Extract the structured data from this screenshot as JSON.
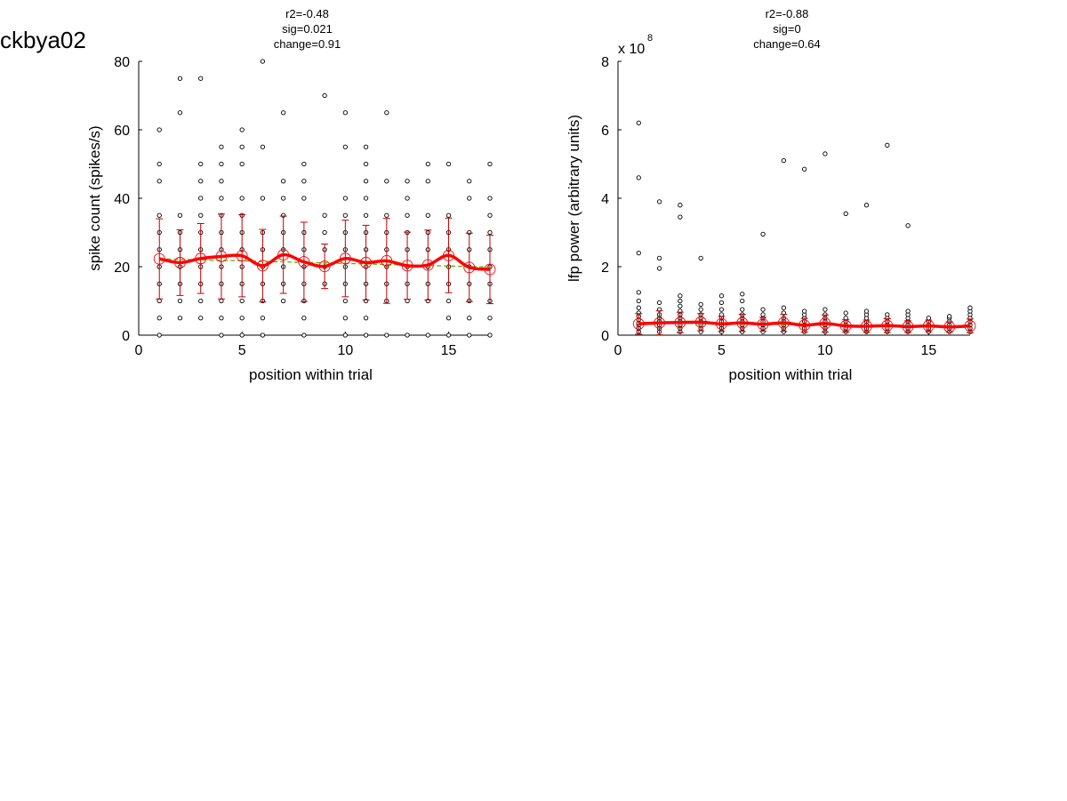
{
  "page_title": "ckbya02",
  "colors": {
    "mean": "#ff0000",
    "errorbar": "#c00000",
    "fit": "#66aa00",
    "points": "#000000"
  },
  "chart_data": [
    {
      "type": "scatter",
      "stats": [
        "r2=-0.48",
        "sig=0.021",
        "change=0.91"
      ],
      "xlabel": "position within trial",
      "ylabel": "spike count (spikes/s)",
      "exponent_label": "",
      "xlim": [
        0,
        17
      ],
      "ylim": [
        0,
        80
      ],
      "xticks": [
        0,
        5,
        10,
        15
      ],
      "yticks": [
        0,
        20,
        40,
        60,
        80
      ],
      "ytick_labels": [
        "0",
        "20",
        "40",
        "60",
        "80"
      ],
      "points": [
        [
          1,
          0
        ],
        [
          1,
          5
        ],
        [
          1,
          10
        ],
        [
          1,
          15
        ],
        [
          1,
          20
        ],
        [
          1,
          25
        ],
        [
          1,
          30
        ],
        [
          1,
          35
        ],
        [
          1,
          45
        ],
        [
          1,
          50
        ],
        [
          1,
          60
        ],
        [
          2,
          5
        ],
        [
          2,
          10
        ],
        [
          2,
          15
        ],
        [
          2,
          20
        ],
        [
          2,
          25
        ],
        [
          2,
          30
        ],
        [
          2,
          35
        ],
        [
          2,
          65
        ],
        [
          2,
          75
        ],
        [
          3,
          5
        ],
        [
          3,
          10
        ],
        [
          3,
          15
        ],
        [
          3,
          20
        ],
        [
          3,
          25
        ],
        [
          3,
          30
        ],
        [
          3,
          35
        ],
        [
          3,
          40
        ],
        [
          3,
          45
        ],
        [
          3,
          50
        ],
        [
          3,
          75
        ],
        [
          4,
          0
        ],
        [
          4,
          5
        ],
        [
          4,
          10
        ],
        [
          4,
          15
        ],
        [
          4,
          20
        ],
        [
          4,
          25
        ],
        [
          4,
          30
        ],
        [
          4,
          35
        ],
        [
          4,
          40
        ],
        [
          4,
          45
        ],
        [
          4,
          50
        ],
        [
          4,
          55
        ],
        [
          5,
          0
        ],
        [
          5,
          5
        ],
        [
          5,
          10
        ],
        [
          5,
          15
        ],
        [
          5,
          20
        ],
        [
          5,
          25
        ],
        [
          5,
          30
        ],
        [
          5,
          35
        ],
        [
          5,
          40
        ],
        [
          5,
          50
        ],
        [
          5,
          55
        ],
        [
          5,
          60
        ],
        [
          6,
          0
        ],
        [
          6,
          5
        ],
        [
          6,
          10
        ],
        [
          6,
          15
        ],
        [
          6,
          20
        ],
        [
          6,
          25
        ],
        [
          6,
          30
        ],
        [
          6,
          40
        ],
        [
          6,
          55
        ],
        [
          6,
          80
        ],
        [
          7,
          10
        ],
        [
          7,
          15
        ],
        [
          7,
          20
        ],
        [
          7,
          25
        ],
        [
          7,
          30
        ],
        [
          7,
          35
        ],
        [
          7,
          40
        ],
        [
          7,
          45
        ],
        [
          7,
          65
        ],
        [
          8,
          0
        ],
        [
          8,
          5
        ],
        [
          8,
          10
        ],
        [
          8,
          15
        ],
        [
          8,
          20
        ],
        [
          8,
          25
        ],
        [
          8,
          30
        ],
        [
          8,
          40
        ],
        [
          8,
          45
        ],
        [
          8,
          50
        ],
        [
          9,
          15
        ],
        [
          9,
          20
        ],
        [
          9,
          25
        ],
        [
          9,
          30
        ],
        [
          9,
          35
        ],
        [
          9,
          70
        ],
        [
          10,
          0
        ],
        [
          10,
          5
        ],
        [
          10,
          10
        ],
        [
          10,
          15
        ],
        [
          10,
          20
        ],
        [
          10,
          25
        ],
        [
          10,
          30
        ],
        [
          10,
          35
        ],
        [
          10,
          40
        ],
        [
          10,
          55
        ],
        [
          10,
          65
        ],
        [
          11,
          0
        ],
        [
          11,
          5
        ],
        [
          11,
          10
        ],
        [
          11,
          15
        ],
        [
          11,
          20
        ],
        [
          11,
          25
        ],
        [
          11,
          30
        ],
        [
          11,
          35
        ],
        [
          11,
          40
        ],
        [
          11,
          45
        ],
        [
          11,
          50
        ],
        [
          11,
          55
        ],
        [
          12,
          0
        ],
        [
          12,
          10
        ],
        [
          12,
          15
        ],
        [
          12,
          20
        ],
        [
          12,
          25
        ],
        [
          12,
          30
        ],
        [
          12,
          35
        ],
        [
          12,
          45
        ],
        [
          12,
          65
        ],
        [
          13,
          0
        ],
        [
          13,
          10
        ],
        [
          13,
          15
        ],
        [
          13,
          20
        ],
        [
          13,
          25
        ],
        [
          13,
          30
        ],
        [
          13,
          35
        ],
        [
          13,
          40
        ],
        [
          13,
          45
        ],
        [
          14,
          0
        ],
        [
          14,
          10
        ],
        [
          14,
          15
        ],
        [
          14,
          20
        ],
        [
          14,
          25
        ],
        [
          14,
          30
        ],
        [
          14,
          35
        ],
        [
          14,
          45
        ],
        [
          14,
          50
        ],
        [
          15,
          0
        ],
        [
          15,
          5
        ],
        [
          15,
          10
        ],
        [
          15,
          15
        ],
        [
          15,
          20
        ],
        [
          15,
          25
        ],
        [
          15,
          30
        ],
        [
          15,
          35
        ],
        [
          15,
          50
        ],
        [
          16,
          0
        ],
        [
          16,
          5
        ],
        [
          16,
          10
        ],
        [
          16,
          15
        ],
        [
          16,
          20
        ],
        [
          16,
          25
        ],
        [
          16,
          30
        ],
        [
          16,
          40
        ],
        [
          16,
          45
        ],
        [
          17,
          0
        ],
        [
          17,
          5
        ],
        [
          17,
          10
        ],
        [
          17,
          15
        ],
        [
          17,
          20
        ],
        [
          17,
          25
        ],
        [
          17,
          30
        ],
        [
          17,
          35
        ],
        [
          17,
          40
        ],
        [
          17,
          50
        ]
      ],
      "means": [
        {
          "x": 1,
          "y": 22.3,
          "err": 11.7
        },
        {
          "x": 2,
          "y": 21.2,
          "err": 9.6
        },
        {
          "x": 3,
          "y": 22.4,
          "err": 10.2
        },
        {
          "x": 4,
          "y": 23.0,
          "err": 12.4
        },
        {
          "x": 5,
          "y": 23.2,
          "err": 12.0
        },
        {
          "x": 6,
          "y": 20.3,
          "err": 10.6
        },
        {
          "x": 7,
          "y": 23.5,
          "err": 11.3
        },
        {
          "x": 8,
          "y": 21.4,
          "err": 11.6
        },
        {
          "x": 9,
          "y": 20.1,
          "err": 6.5
        },
        {
          "x": 10,
          "y": 22.4,
          "err": 11.2
        },
        {
          "x": 11,
          "y": 21.2,
          "err": 10.9
        },
        {
          "x": 12,
          "y": 21.7,
          "err": 12.4
        },
        {
          "x": 13,
          "y": 20.3,
          "err": 9.8
        },
        {
          "x": 14,
          "y": 20.5,
          "err": 10.2
        },
        {
          "x": 15,
          "y": 23.3,
          "err": 10.9
        },
        {
          "x": 16,
          "y": 19.8,
          "err": 10.0
        },
        {
          "x": 17,
          "y": 19.2,
          "err": 10.0
        }
      ],
      "fit": [
        [
          1,
          22.3
        ],
        [
          17,
          19.9
        ]
      ]
    },
    {
      "type": "scatter",
      "stats": [
        "r2=-0.88",
        "sig=0",
        "change=0.64"
      ],
      "xlabel": "position within trial",
      "ylabel": "lfp power (arbitrary units)",
      "exponent_label": "x 10",
      "exponent": "8",
      "xlim": [
        0,
        17
      ],
      "ylim": [
        0,
        8
      ],
      "xticks": [
        0,
        5,
        10,
        15
      ],
      "yticks": [
        0,
        2,
        4,
        6,
        8
      ],
      "ytick_labels": [
        "0",
        "2",
        "4",
        "6",
        "8"
      ],
      "points": [
        [
          1,
          0.1
        ],
        [
          1,
          0.2
        ],
        [
          1,
          0.3
        ],
        [
          1,
          0.35
        ],
        [
          1,
          0.45
        ],
        [
          1,
          0.55
        ],
        [
          1,
          0.65
        ],
        [
          1,
          0.8
        ],
        [
          1,
          1.0
        ],
        [
          1,
          1.25
        ],
        [
          1,
          2.4
        ],
        [
          1,
          4.6
        ],
        [
          1,
          6.2
        ],
        [
          2,
          0.1
        ],
        [
          2,
          0.2
        ],
        [
          2,
          0.3
        ],
        [
          2,
          0.4
        ],
        [
          2,
          0.5
        ],
        [
          2,
          0.6
        ],
        [
          2,
          0.75
        ],
        [
          2,
          0.95
        ],
        [
          2,
          1.95
        ],
        [
          2,
          2.25
        ],
        [
          2,
          3.9
        ],
        [
          3,
          0.1
        ],
        [
          3,
          0.2
        ],
        [
          3,
          0.3
        ],
        [
          3,
          0.4
        ],
        [
          3,
          0.5
        ],
        [
          3,
          0.6
        ],
        [
          3,
          0.7
        ],
        [
          3,
          0.85
        ],
        [
          3,
          1.0
        ],
        [
          3,
          1.15
        ],
        [
          3,
          3.45
        ],
        [
          3,
          3.8
        ],
        [
          4,
          0.1
        ],
        [
          4,
          0.2
        ],
        [
          4,
          0.3
        ],
        [
          4,
          0.4
        ],
        [
          4,
          0.5
        ],
        [
          4,
          0.6
        ],
        [
          4,
          0.75
        ],
        [
          4,
          0.9
        ],
        [
          4,
          2.25
        ],
        [
          5,
          0.1
        ],
        [
          5,
          0.2
        ],
        [
          5,
          0.3
        ],
        [
          5,
          0.4
        ],
        [
          5,
          0.5
        ],
        [
          5,
          0.6
        ],
        [
          5,
          0.75
        ],
        [
          5,
          0.95
        ],
        [
          5,
          1.15
        ],
        [
          6,
          0.1
        ],
        [
          6,
          0.2
        ],
        [
          6,
          0.3
        ],
        [
          6,
          0.4
        ],
        [
          6,
          0.5
        ],
        [
          6,
          0.6
        ],
        [
          6,
          0.75
        ],
        [
          6,
          1.0
        ],
        [
          6,
          1.2
        ],
        [
          7,
          0.1
        ],
        [
          7,
          0.2
        ],
        [
          7,
          0.3
        ],
        [
          7,
          0.4
        ],
        [
          7,
          0.5
        ],
        [
          7,
          0.6
        ],
        [
          7,
          0.75
        ],
        [
          7,
          2.95
        ],
        [
          8,
          0.1
        ],
        [
          8,
          0.2
        ],
        [
          8,
          0.3
        ],
        [
          8,
          0.4
        ],
        [
          8,
          0.5
        ],
        [
          8,
          0.65
        ],
        [
          8,
          0.8
        ],
        [
          8,
          5.1
        ],
        [
          9,
          0.1
        ],
        [
          9,
          0.2
        ],
        [
          9,
          0.3
        ],
        [
          9,
          0.4
        ],
        [
          9,
          0.5
        ],
        [
          9,
          0.6
        ],
        [
          9,
          0.7
        ],
        [
          9,
          4.85
        ],
        [
          10,
          0.1
        ],
        [
          10,
          0.2
        ],
        [
          10,
          0.3
        ],
        [
          10,
          0.4
        ],
        [
          10,
          0.5
        ],
        [
          10,
          0.6
        ],
        [
          10,
          0.75
        ],
        [
          10,
          5.3
        ],
        [
          11,
          0.1
        ],
        [
          11,
          0.2
        ],
        [
          11,
          0.3
        ],
        [
          11,
          0.4
        ],
        [
          11,
          0.5
        ],
        [
          11,
          0.65
        ],
        [
          11,
          3.55
        ],
        [
          12,
          0.1
        ],
        [
          12,
          0.2
        ],
        [
          12,
          0.3
        ],
        [
          12,
          0.4
        ],
        [
          12,
          0.5
        ],
        [
          12,
          0.6
        ],
        [
          12,
          0.7
        ],
        [
          12,
          3.8
        ],
        [
          13,
          0.1
        ],
        [
          13,
          0.2
        ],
        [
          13,
          0.3
        ],
        [
          13,
          0.4
        ],
        [
          13,
          0.5
        ],
        [
          13,
          0.6
        ],
        [
          13,
          5.55
        ],
        [
          14,
          0.1
        ],
        [
          14,
          0.2
        ],
        [
          14,
          0.3
        ],
        [
          14,
          0.4
        ],
        [
          14,
          0.5
        ],
        [
          14,
          0.6
        ],
        [
          14,
          0.7
        ],
        [
          14,
          3.2
        ],
        [
          15,
          0.1
        ],
        [
          15,
          0.2
        ],
        [
          15,
          0.3
        ],
        [
          15,
          0.4
        ],
        [
          15,
          0.5
        ],
        [
          16,
          0.1
        ],
        [
          16,
          0.2
        ],
        [
          16,
          0.3
        ],
        [
          16,
          0.4
        ],
        [
          16,
          0.5
        ],
        [
          16,
          0.55
        ],
        [
          17,
          0.1
        ],
        [
          17,
          0.2
        ],
        [
          17,
          0.3
        ],
        [
          17,
          0.4
        ],
        [
          17,
          0.5
        ],
        [
          17,
          0.6
        ],
        [
          17,
          0.7
        ],
        [
          17,
          0.8
        ]
      ],
      "means": [
        {
          "x": 1,
          "y": 0.33,
          "err": 0.3
        },
        {
          "x": 2,
          "y": 0.36,
          "err": 0.35
        },
        {
          "x": 3,
          "y": 0.37,
          "err": 0.3
        },
        {
          "x": 4,
          "y": 0.38,
          "err": 0.25
        },
        {
          "x": 5,
          "y": 0.33,
          "err": 0.22
        },
        {
          "x": 6,
          "y": 0.36,
          "err": 0.25
        },
        {
          "x": 7,
          "y": 0.32,
          "err": 0.2
        },
        {
          "x": 8,
          "y": 0.36,
          "err": 0.25
        },
        {
          "x": 9,
          "y": 0.29,
          "err": 0.2
        },
        {
          "x": 10,
          "y": 0.34,
          "err": 0.25
        },
        {
          "x": 11,
          "y": 0.27,
          "err": 0.18
        },
        {
          "x": 12,
          "y": 0.26,
          "err": 0.18
        },
        {
          "x": 13,
          "y": 0.28,
          "err": 0.2
        },
        {
          "x": 14,
          "y": 0.25,
          "err": 0.17
        },
        {
          "x": 15,
          "y": 0.27,
          "err": 0.17
        },
        {
          "x": 16,
          "y": 0.24,
          "err": 0.15
        },
        {
          "x": 17,
          "y": 0.27,
          "err": 0.2
        }
      ],
      "fit": [
        [
          1,
          0.36
        ],
        [
          17,
          0.24
        ]
      ]
    }
  ]
}
